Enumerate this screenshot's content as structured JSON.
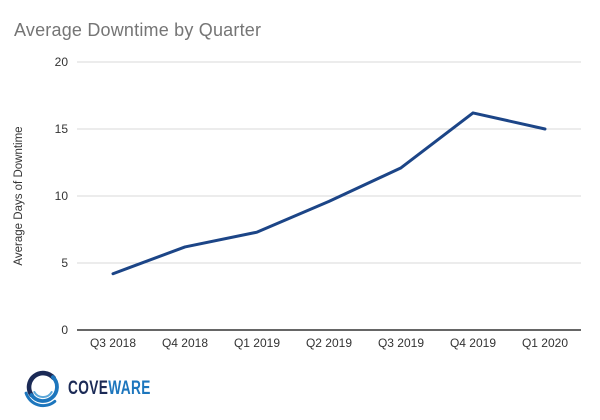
{
  "title": "Average Downtime by Quarter",
  "chart_data": {
    "type": "line",
    "categories": [
      "Q3 2018",
      "Q4 2018",
      "Q1 2019",
      "Q2 2019",
      "Q3 2019",
      "Q4 2019",
      "Q1 2020"
    ],
    "values": [
      4.2,
      6.2,
      7.3,
      9.6,
      12.1,
      16.2,
      15.0
    ],
    "title": "Average Downtime by Quarter",
    "xlabel": "",
    "ylabel": "Average Days of Downtime",
    "ylim": [
      0,
      20
    ],
    "yticks": [
      0,
      5,
      10,
      15,
      20
    ],
    "grid": "horizontal",
    "legend": "none"
  },
  "colors": {
    "title_text": "#757575",
    "axis_text": "#333333",
    "gridline": "#d9d9d9",
    "axis_line": "#333333",
    "line": "#1c4587",
    "logo_navy": "#1b2a56",
    "logo_blue": "#1d76bd",
    "logo_light_blue": "#5ba7d9"
  },
  "logo": {
    "brand_left": "COVE",
    "brand_right": "WARE"
  }
}
